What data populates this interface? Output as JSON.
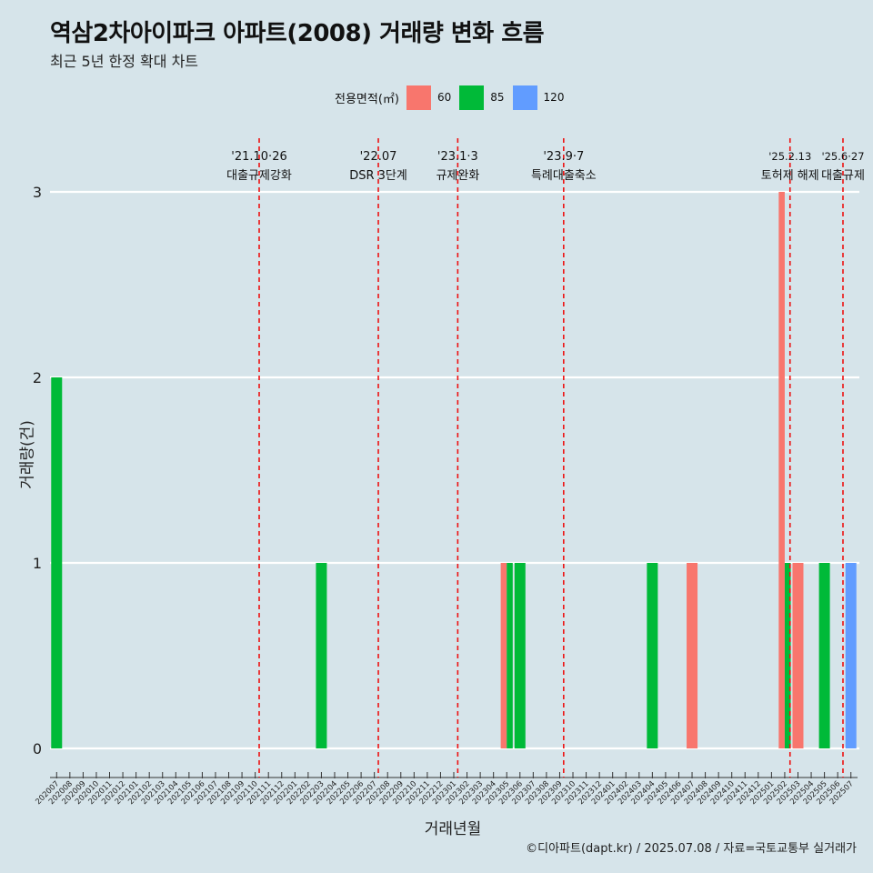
{
  "chart_data": {
    "type": "bar",
    "title": "역삼2차아이파크 아파트(2008) 거래량 변화 흐름",
    "subtitle": "최근 5년 한정 확대 차트",
    "xlabel": "거래년월",
    "ylabel": "거래량(건)",
    "ylim": [
      0,
      3
    ],
    "yticks": [
      0,
      1,
      2,
      3
    ],
    "legend_title": "전용면적(㎡)",
    "legend_position": "top",
    "categories": [
      "202007",
      "202008",
      "202009",
      "202010",
      "202011",
      "202012",
      "202101",
      "202102",
      "202103",
      "202104",
      "202105",
      "202106",
      "202107",
      "202108",
      "202109",
      "202110",
      "202111",
      "202112",
      "202201",
      "202202",
      "202203",
      "202204",
      "202205",
      "202206",
      "202207",
      "202208",
      "202209",
      "202210",
      "202211",
      "202212",
      "202301",
      "202302",
      "202303",
      "202304",
      "202305",
      "202306",
      "202307",
      "202308",
      "202309",
      "202310",
      "202311",
      "202312",
      "202401",
      "202402",
      "202403",
      "202404",
      "202405",
      "202406",
      "202407",
      "202408",
      "202409",
      "202410",
      "202411",
      "202412",
      "202501",
      "202502",
      "202503",
      "202504",
      "202505",
      "202506",
      "202507"
    ],
    "series": [
      {
        "name": "60",
        "color": "#F8766D",
        "values": [
          0,
          0,
          0,
          0,
          0,
          0,
          0,
          0,
          0,
          0,
          0,
          0,
          0,
          0,
          0,
          0,
          0,
          0,
          0,
          0,
          0,
          0,
          0,
          0,
          0,
          0,
          0,
          0,
          0,
          0,
          0,
          0,
          0,
          0,
          1,
          0,
          0,
          0,
          0,
          0,
          0,
          0,
          0,
          0,
          0,
          0,
          0,
          0,
          1,
          0,
          0,
          0,
          0,
          0,
          0,
          3,
          1,
          0,
          0,
          0,
          0
        ]
      },
      {
        "name": "85",
        "color": "#00BA38",
        "values": [
          2,
          0,
          0,
          0,
          0,
          0,
          0,
          0,
          0,
          0,
          0,
          0,
          0,
          0,
          0,
          0,
          0,
          0,
          0,
          0,
          1,
          0,
          0,
          0,
          0,
          0,
          0,
          0,
          0,
          0,
          0,
          0,
          0,
          0,
          1,
          1,
          0,
          0,
          0,
          0,
          0,
          0,
          0,
          0,
          0,
          1,
          0,
          0,
          0,
          0,
          0,
          0,
          0,
          0,
          0,
          1,
          0,
          0,
          1,
          0,
          0
        ]
      },
      {
        "name": "120",
        "color": "#619CFF",
        "values": [
          0,
          0,
          0,
          0,
          0,
          0,
          0,
          0,
          0,
          0,
          0,
          0,
          0,
          0,
          0,
          0,
          0,
          0,
          0,
          0,
          0,
          0,
          0,
          0,
          0,
          0,
          0,
          0,
          0,
          0,
          0,
          0,
          0,
          0,
          0,
          0,
          0,
          0,
          0,
          0,
          0,
          0,
          0,
          0,
          0,
          0,
          0,
          0,
          0,
          0,
          0,
          0,
          0,
          0,
          0,
          0,
          0,
          0,
          0,
          0,
          1
        ]
      }
    ],
    "annotations": [
      {
        "x": 15.3,
        "date": "'21.10·26",
        "label": "대출규제강화"
      },
      {
        "x": 24.3,
        "date": "'22.07",
        "label": "DSR 3단계"
      },
      {
        "x": 30.3,
        "date": "'23.1·3",
        "label": "규제완화"
      },
      {
        "x": 38.3,
        "date": "'23.9·7",
        "label": "특례대출축소"
      },
      {
        "x": 55.4,
        "date": "'25.2.13",
        "label": "토허제 해제"
      },
      {
        "x": 59.4,
        "date": "'25.6·27",
        "label": "대출규제"
      }
    ]
  },
  "caption": "©디아파트(dapt.kr) / 2025.07.08 / 자료=국토교통부 실거래가"
}
